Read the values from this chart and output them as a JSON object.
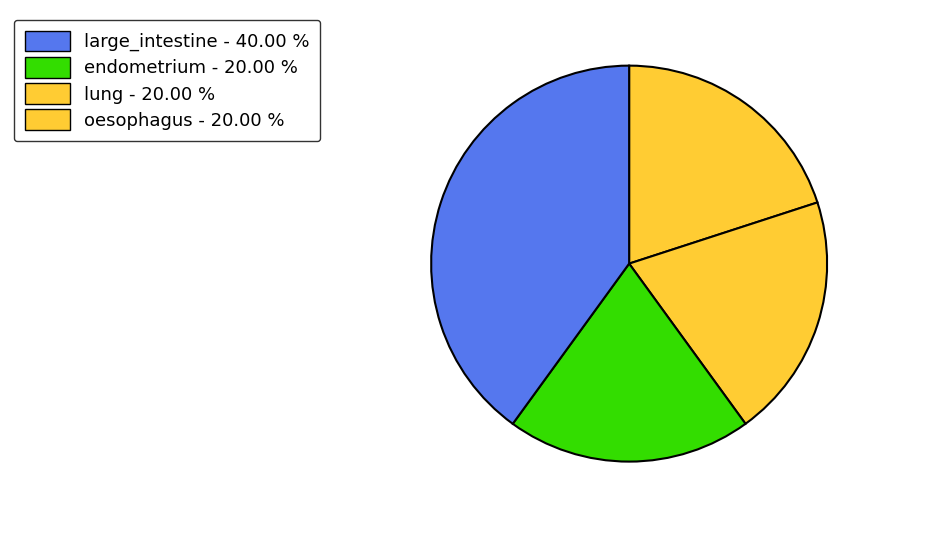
{
  "labels": [
    "oesophagus",
    "lung",
    "endometrium",
    "large_intestine"
  ],
  "values": [
    20.0,
    20.0,
    20.0,
    40.0
  ],
  "colors": [
    "#ffcc33",
    "#ffcc33",
    "#33dd00",
    "#5577ee"
  ],
  "legend_labels": [
    "large_intestine - 40.00 %",
    "endometrium - 20.00 %",
    "lung - 20.00 %",
    "oesophagus - 20.00 %"
  ],
  "legend_colors": [
    "#5577ee",
    "#33dd00",
    "#ffcc33",
    "#ffcc33"
  ],
  "startangle": 90,
  "figsize": [
    9.39,
    5.38
  ],
  "dpi": 100,
  "background_color": "#ffffff",
  "legend_fontsize": 13
}
